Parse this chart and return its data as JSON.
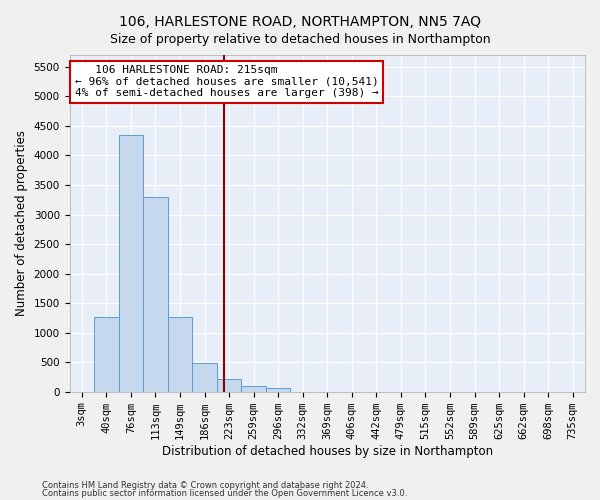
{
  "title": "106, HARLESTONE ROAD, NORTHAMPTON, NN5 7AQ",
  "subtitle": "Size of property relative to detached houses in Northampton",
  "xlabel": "Distribution of detached houses by size in Northampton",
  "ylabel": "Number of detached properties",
  "footnote1": "Contains HM Land Registry data © Crown copyright and database right 2024.",
  "footnote2": "Contains public sector information licensed under the Open Government Licence v3.0.",
  "annotation_line1": "106 HARLESTONE ROAD: 215sqm",
  "annotation_line2": "← 96% of detached houses are smaller (10,541)",
  "annotation_line3": "4% of semi-detached houses are larger (398) →",
  "bar_labels": [
    "3sqm",
    "40sqm",
    "76sqm",
    "113sqm",
    "149sqm",
    "186sqm",
    "223sqm",
    "259sqm",
    "296sqm",
    "332sqm",
    "369sqm",
    "406sqm",
    "442sqm",
    "479sqm",
    "515sqm",
    "552sqm",
    "589sqm",
    "625sqm",
    "662sqm",
    "698sqm",
    "735sqm"
  ],
  "bar_values": [
    0,
    1270,
    4350,
    3300,
    1270,
    490,
    220,
    90,
    60,
    0,
    0,
    0,
    0,
    0,
    0,
    0,
    0,
    0,
    0,
    0,
    0
  ],
  "bar_color": "#c5d8ee",
  "bar_edge_color": "#5b9bd5",
  "background_color": "#e8eef8",
  "grid_color": "#d0d8e8",
  "vline_color": "#8b0000",
  "ylim": [
    0,
    5700
  ],
  "yticks": [
    0,
    500,
    1000,
    1500,
    2000,
    2500,
    3000,
    3500,
    4000,
    4500,
    5000,
    5500
  ],
  "annotation_box_color": "#ffffff",
  "annotation_box_edge": "#cc0000",
  "title_fontsize": 10,
  "subtitle_fontsize": 9,
  "axis_label_fontsize": 8.5,
  "tick_fontsize": 7.5,
  "annotation_fontsize": 8
}
